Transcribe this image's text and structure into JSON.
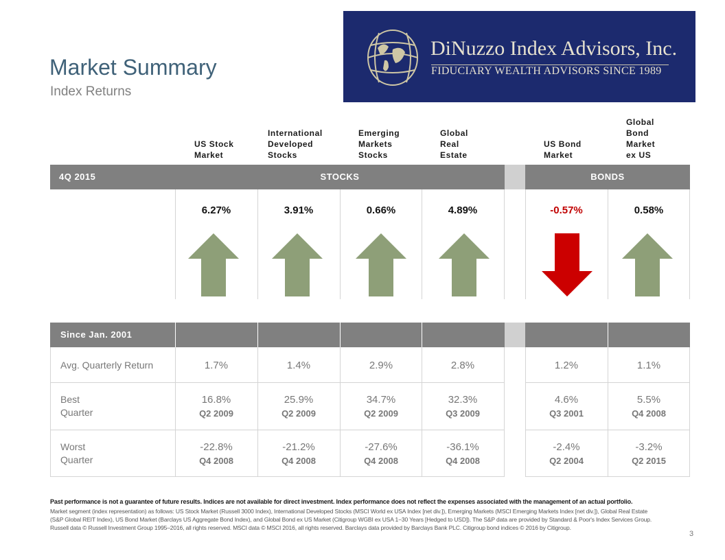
{
  "title": "Market Summary",
  "subtitle": "Index Returns",
  "logo": {
    "name": "DiNuzzo Index Advisors, Inc.",
    "tagline": "FIDUCIARY WEALTH ADVISORS SINCE 1989",
    "bg_color": "#1c2a6e",
    "icon": "globe-emblem-icon"
  },
  "columns": [
    {
      "label": [
        "US Stock",
        "Market"
      ]
    },
    {
      "label": [
        "International",
        "Developed",
        "Stocks"
      ]
    },
    {
      "label": [
        "Emerging",
        "Markets",
        "Stocks"
      ]
    },
    {
      "label": [
        "Global",
        "Real",
        "Estate"
      ]
    },
    {
      "label": [
        "US Bond",
        "Market"
      ]
    },
    {
      "label": [
        "Global",
        "Bond",
        "Market",
        "ex US"
      ]
    }
  ],
  "quarter": {
    "period_label": "4Q 2015",
    "stocks_label": "STOCKS",
    "bonds_label": "BONDS",
    "returns": [
      {
        "value": "6.27%",
        "direction": "up"
      },
      {
        "value": "3.91%",
        "direction": "up"
      },
      {
        "value": "0.66%",
        "direction": "up"
      },
      {
        "value": "4.89%",
        "direction": "up"
      },
      {
        "value": "-0.57%",
        "direction": "down"
      },
      {
        "value": "0.58%",
        "direction": "up"
      }
    ],
    "up_color": "#8e9f78",
    "down_color": "#cc0000"
  },
  "since": {
    "period_label": "Since Jan. 2001",
    "rows": [
      {
        "label": [
          "Avg. Quarterly Return"
        ],
        "cells": [
          {
            "value": "1.7%"
          },
          {
            "value": "1.4%"
          },
          {
            "value": "2.9%"
          },
          {
            "value": "2.8%"
          },
          {
            "value": "1.2%"
          },
          {
            "value": "1.1%"
          }
        ]
      },
      {
        "label": [
          "Best",
          "Quarter"
        ],
        "cells": [
          {
            "value": "16.8%",
            "quarter": "Q2 2009"
          },
          {
            "value": "25.9%",
            "quarter": "Q2 2009"
          },
          {
            "value": "34.7%",
            "quarter": "Q2 2009"
          },
          {
            "value": "32.3%",
            "quarter": "Q3 2009"
          },
          {
            "value": "4.6%",
            "quarter": "Q3 2001"
          },
          {
            "value": "5.5%",
            "quarter": "Q4 2008"
          }
        ]
      },
      {
        "label": [
          "Worst",
          "Quarter"
        ],
        "cells": [
          {
            "value": "-22.8%",
            "quarter": "Q4 2008"
          },
          {
            "value": "-21.2%",
            "quarter": "Q4 2008"
          },
          {
            "value": "-27.6%",
            "quarter": "Q4 2008"
          },
          {
            "value": "-36.1%",
            "quarter": "Q4 2008"
          },
          {
            "value": "-2.4%",
            "quarter": "Q2 2004"
          },
          {
            "value": "-3.2%",
            "quarter": "Q2 2015"
          }
        ]
      }
    ]
  },
  "disclaimer": "Past performance is not a guarantee of future results. Indices are not available for direct investment. Index performance does not reflect the expenses associated with the management of an actual portfolio.",
  "footnote": "Market segment (index representation) as follows: US Stock Market (Russell 3000 Index), International Developed Stocks (MSCI World ex USA Index [net div.]), Emerging Markets (MSCI Emerging Markets Index [net div.]), Global Real Estate (S&P Global REIT Index), US Bond Market (Barclays US Aggregate Bond Index), and Global Bond ex US Market (Citigroup WGBI ex USA 1−30 Years [Hedged to USD]). The S&P data are provided by Standard & Poor's Index Services Group. Russell data © Russell Investment Group 1995–2016, all rights reserved. MSCI data © MSCI 2016, all rights reserved. Barclays data provided by Barclays Bank PLC. Citigroup bond indices © 2016 by Citigroup.",
  "page_number": "3"
}
